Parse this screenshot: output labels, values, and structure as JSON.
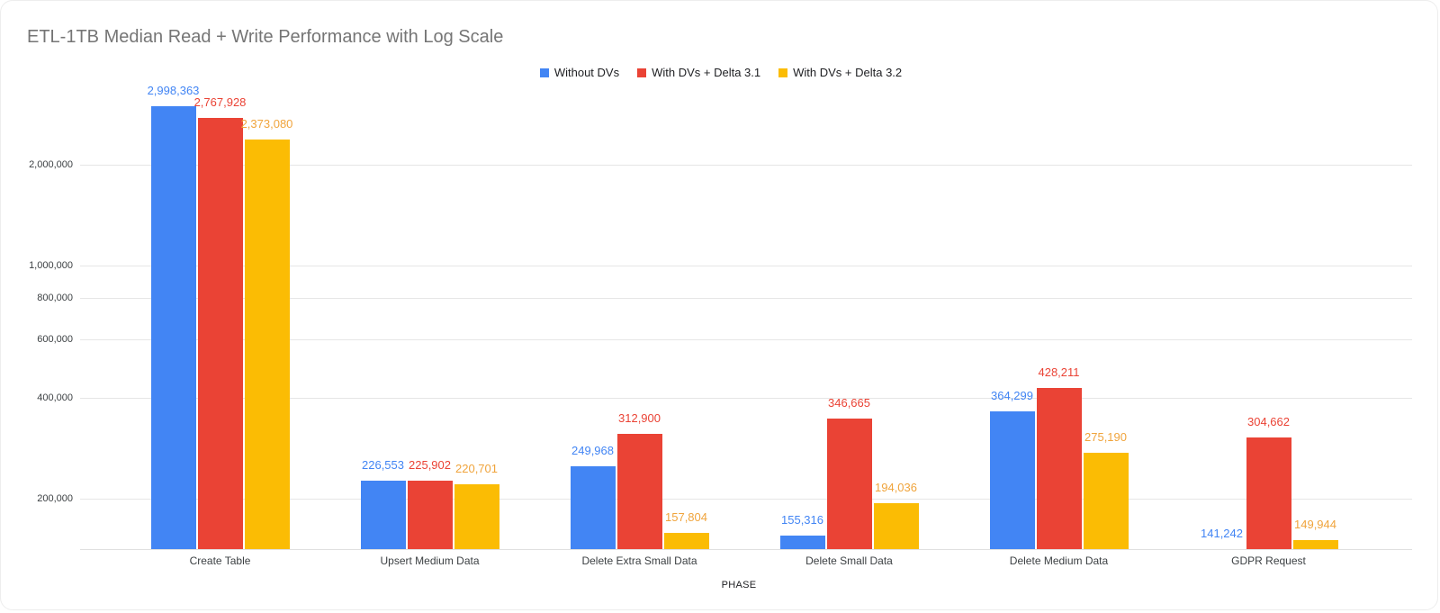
{
  "title": "ETL-1TB Median Read + Write Performance with Log Scale",
  "chart_data": {
    "type": "bar",
    "scale": "log",
    "title": "ETL-1TB Median Read + Write Performance with Log Scale",
    "xlabel": "PHASE",
    "ylabel": "",
    "grid": "horizontal",
    "legend_position": "top-center",
    "categories": [
      "Create Table",
      "Upsert Medium Data",
      "Delete Extra Small Data",
      "Delete Small Data",
      "Delete Medium Data",
      "GDPR Request"
    ],
    "series": [
      {
        "name": "Without DVs",
        "color": "#4285F4",
        "label_color": "#4285F4",
        "values": [
          2998363,
          226553,
          249968,
          155316,
          364299,
          141242
        ]
      },
      {
        "name": "With DVs + Delta 3.1",
        "color": "#EA4335",
        "label_color": "#EA4335",
        "values": [
          2767928,
          225902,
          312900,
          346665,
          428211,
          304662
        ]
      },
      {
        "name": "With DVs + Delta 3.2",
        "color": "#FBBC04",
        "label_color": "#F0A43C",
        "values": [
          2373080,
          220701,
          157804,
          194036,
          275190,
          149944
        ]
      }
    ],
    "y_axis": {
      "min": 141242,
      "ticks": [
        {
          "value": 200000,
          "label": "200,000"
        },
        {
          "value": 400000,
          "label": "400,000"
        },
        {
          "value": 600000,
          "label": "600,000"
        },
        {
          "value": 800000,
          "label": "800,000"
        },
        {
          "value": 1000000,
          "label": "1,000,000"
        },
        {
          "value": 2000000,
          "label": "2,000,000"
        }
      ]
    }
  }
}
